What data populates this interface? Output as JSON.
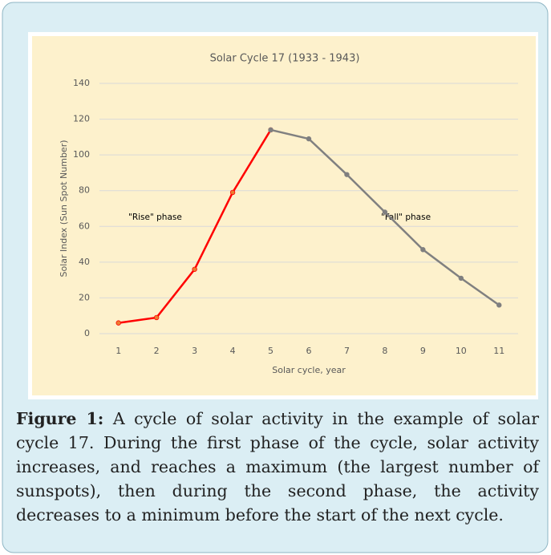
{
  "chart_data": {
    "type": "line",
    "title": "Solar Cycle 17 (1933 - 1943)",
    "x_label": "Solar cycle, year",
    "y_label": "Solar Index (Sun Spot Number)",
    "x": [
      1,
      2,
      3,
      4,
      5,
      6,
      7,
      8,
      9,
      10,
      11
    ],
    "xlim": [
      0.5,
      11.5
    ],
    "series": [
      {
        "color": "#ff0000",
        "values": [
          6,
          9,
          36,
          79,
          114,
          null,
          null,
          null,
          null,
          null,
          null
        ]
      },
      {
        "color": "#808080",
        "values": [
          null,
          null,
          null,
          null,
          114,
          109,
          89,
          68,
          47,
          31,
          16
        ]
      }
    ],
    "ylim": [
      0,
      140
    ],
    "yticks": [
      0,
      20,
      40,
      60,
      80,
      100,
      120,
      140
    ],
    "grid": true,
    "annotations": [
      "\"Rise\" phase",
      "\"Fall\" phase"
    ]
  },
  "caption": {
    "label": "Figure 1:",
    "text": "A cycle of solar activity in the example of solar cycle 17. During the first phase of the cycle, solar activity increases, and reaches a maximum (the largest number of sunspots), then during the second phase, the activity decreases to a minimum before the start of the next cycle."
  }
}
